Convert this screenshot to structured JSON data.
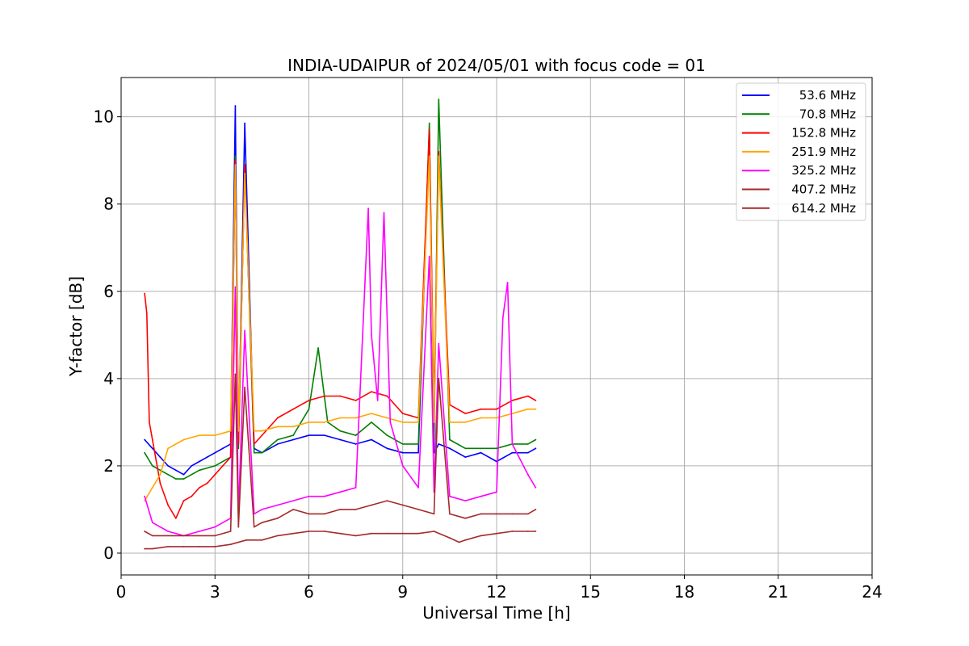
{
  "chart_data": {
    "type": "line",
    "title": "INDIA-UDAIPUR of 2024/05/01 with focus code = 01",
    "xlabel": "Universal Time [h]",
    "ylabel": "Y-factor [dB]",
    "xlim": [
      0,
      24
    ],
    "ylim": [
      -0.5,
      10.9
    ],
    "xticks": [
      "0",
      "3",
      "6",
      "9",
      "12",
      "15",
      "18",
      "21",
      "24"
    ],
    "yticks": [
      "0",
      "2",
      "4",
      "6",
      "8",
      "10"
    ],
    "grid": true,
    "legend_position": "top-right",
    "series": [
      {
        "name": " 53.6 MHz",
        "color": "#0000ff",
        "x": [
          0.75,
          1.0,
          1.25,
          1.5,
          1.75,
          2.0,
          2.25,
          2.5,
          2.75,
          3.0,
          3.25,
          3.5,
          3.65,
          3.75,
          3.95,
          4.25,
          4.5,
          5.0,
          5.5,
          6.0,
          6.5,
          7.0,
          7.5,
          8.0,
          8.5,
          9.0,
          9.5,
          9.85,
          10.0,
          10.15,
          10.5,
          11.0,
          11.5,
          12.0,
          12.5,
          13.0,
          13.25
        ],
        "y": [
          2.6,
          2.4,
          2.2,
          2.0,
          1.9,
          1.8,
          2.0,
          2.1,
          2.2,
          2.3,
          2.4,
          2.5,
          10.25,
          2.5,
          9.85,
          2.4,
          2.3,
          2.5,
          2.6,
          2.7,
          2.7,
          2.6,
          2.5,
          2.6,
          2.4,
          2.3,
          2.3,
          9.7,
          2.3,
          2.5,
          2.4,
          2.2,
          2.3,
          2.1,
          2.3,
          2.3,
          2.4
        ]
      },
      {
        "name": " 70.8 MHz",
        "color": "#008000",
        "x": [
          0.75,
          1.0,
          1.25,
          1.5,
          1.75,
          2.0,
          2.5,
          3.0,
          3.5,
          3.65,
          3.75,
          3.95,
          4.25,
          4.5,
          5.0,
          5.5,
          6.0,
          6.3,
          6.6,
          7.0,
          7.5,
          8.0,
          8.5,
          9.0,
          9.5,
          9.85,
          10.0,
          10.15,
          10.5,
          11.0,
          11.5,
          12.0,
          12.5,
          13.0,
          13.25
        ],
        "y": [
          2.3,
          2.0,
          1.9,
          1.8,
          1.7,
          1.7,
          1.9,
          2.0,
          2.2,
          9.1,
          2.4,
          8.9,
          2.3,
          2.3,
          2.6,
          2.7,
          3.3,
          4.7,
          3.0,
          2.8,
          2.7,
          3.0,
          2.7,
          2.5,
          2.5,
          9.85,
          2.6,
          10.4,
          2.6,
          2.4,
          2.4,
          2.4,
          2.5,
          2.5,
          2.6
        ]
      },
      {
        "name": "152.8 MHz",
        "color": "#ff0000",
        "x": [
          0.75,
          0.82,
          0.9,
          1.0,
          1.25,
          1.5,
          1.75,
          2.0,
          2.25,
          2.5,
          2.75,
          3.0,
          3.25,
          3.5,
          3.65,
          3.75,
          3.95,
          4.25,
          4.5,
          5.0,
          5.5,
          6.0,
          6.5,
          7.0,
          7.5,
          8.0,
          8.5,
          9.0,
          9.5,
          9.85,
          10.0,
          10.15,
          10.5,
          11.0,
          11.5,
          12.0,
          12.5,
          13.0,
          13.25
        ],
        "y": [
          5.95,
          5.5,
          3.0,
          2.6,
          1.6,
          1.1,
          0.8,
          1.2,
          1.3,
          1.5,
          1.6,
          1.8,
          2.0,
          2.2,
          9.0,
          2.5,
          8.9,
          2.5,
          2.7,
          3.1,
          3.3,
          3.5,
          3.6,
          3.6,
          3.5,
          3.7,
          3.6,
          3.2,
          3.1,
          9.7,
          3.3,
          9.2,
          3.4,
          3.2,
          3.3,
          3.3,
          3.5,
          3.6,
          3.5
        ]
      },
      {
        "name": "251.9 MHz",
        "color": "#ffa500",
        "x": [
          0.75,
          1.0,
          1.25,
          1.5,
          2.0,
          2.5,
          3.0,
          3.5,
          3.65,
          3.75,
          3.95,
          4.25,
          4.5,
          5.0,
          5.5,
          6.0,
          6.5,
          7.0,
          7.5,
          8.0,
          8.5,
          9.0,
          9.5,
          9.85,
          10.0,
          10.15,
          10.5,
          11.0,
          11.5,
          12.0,
          12.5,
          13.0,
          13.25
        ],
        "y": [
          1.2,
          1.5,
          1.8,
          2.4,
          2.6,
          2.7,
          2.7,
          2.8,
          8.9,
          2.8,
          8.7,
          2.8,
          2.8,
          2.9,
          2.9,
          3.0,
          3.0,
          3.1,
          3.1,
          3.2,
          3.1,
          3.0,
          3.0,
          9.1,
          3.0,
          9.1,
          3.0,
          3.0,
          3.1,
          3.1,
          3.2,
          3.3,
          3.3
        ]
      },
      {
        "name": "325.2 MHz",
        "color": "#ff00ff",
        "x": [
          0.75,
          1.0,
          1.5,
          2.0,
          2.5,
          3.0,
          3.5,
          3.65,
          3.75,
          3.95,
          4.25,
          4.5,
          5.0,
          5.5,
          6.0,
          6.5,
          7.0,
          7.5,
          7.9,
          8.0,
          8.2,
          8.4,
          8.6,
          9.0,
          9.5,
          9.85,
          10.0,
          10.15,
          10.5,
          11.0,
          11.5,
          12.0,
          12.2,
          12.35,
          12.5,
          13.0,
          13.25
        ],
        "y": [
          1.3,
          0.7,
          0.5,
          0.4,
          0.5,
          0.6,
          0.8,
          6.1,
          0.9,
          5.1,
          0.9,
          1.0,
          1.1,
          1.2,
          1.3,
          1.3,
          1.4,
          1.5,
          7.9,
          5.0,
          3.5,
          7.8,
          3.0,
          2.0,
          1.5,
          6.8,
          1.4,
          4.8,
          1.3,
          1.2,
          1.3,
          1.4,
          5.4,
          6.2,
          2.5,
          1.8,
          1.5
        ]
      },
      {
        "name": "407.2 MHz",
        "color": "#a52a2a",
        "x": [
          0.75,
          1.0,
          1.5,
          2.0,
          2.5,
          3.0,
          3.5,
          3.65,
          3.75,
          3.95,
          4.25,
          4.5,
          5.0,
          5.5,
          6.0,
          6.5,
          7.0,
          7.5,
          8.0,
          8.5,
          9.0,
          9.5,
          10.0,
          10.15,
          10.5,
          11.0,
          11.5,
          12.0,
          12.5,
          13.0,
          13.25
        ],
        "y": [
          0.5,
          0.4,
          0.4,
          0.4,
          0.4,
          0.4,
          0.5,
          4.1,
          0.6,
          3.8,
          0.6,
          0.7,
          0.8,
          1.0,
          0.9,
          0.9,
          1.0,
          1.0,
          1.1,
          1.2,
          1.1,
          1.0,
          0.9,
          4.0,
          0.9,
          0.8,
          0.9,
          0.9,
          0.9,
          0.9,
          1.0
        ]
      },
      {
        "name": "614.2 MHz",
        "color": "#a52a2a",
        "x": [
          0.75,
          1.0,
          1.5,
          2.0,
          2.5,
          3.0,
          3.5,
          4.0,
          4.5,
          5.0,
          5.5,
          6.0,
          6.5,
          7.0,
          7.5,
          8.0,
          8.5,
          9.0,
          9.5,
          10.0,
          10.5,
          10.8,
          11.0,
          11.5,
          12.0,
          12.5,
          13.0,
          13.25
        ],
        "y": [
          0.1,
          0.1,
          0.15,
          0.15,
          0.15,
          0.15,
          0.2,
          0.3,
          0.3,
          0.4,
          0.45,
          0.5,
          0.5,
          0.45,
          0.4,
          0.45,
          0.45,
          0.45,
          0.45,
          0.5,
          0.35,
          0.25,
          0.3,
          0.4,
          0.45,
          0.5,
          0.5,
          0.5
        ]
      }
    ]
  }
}
